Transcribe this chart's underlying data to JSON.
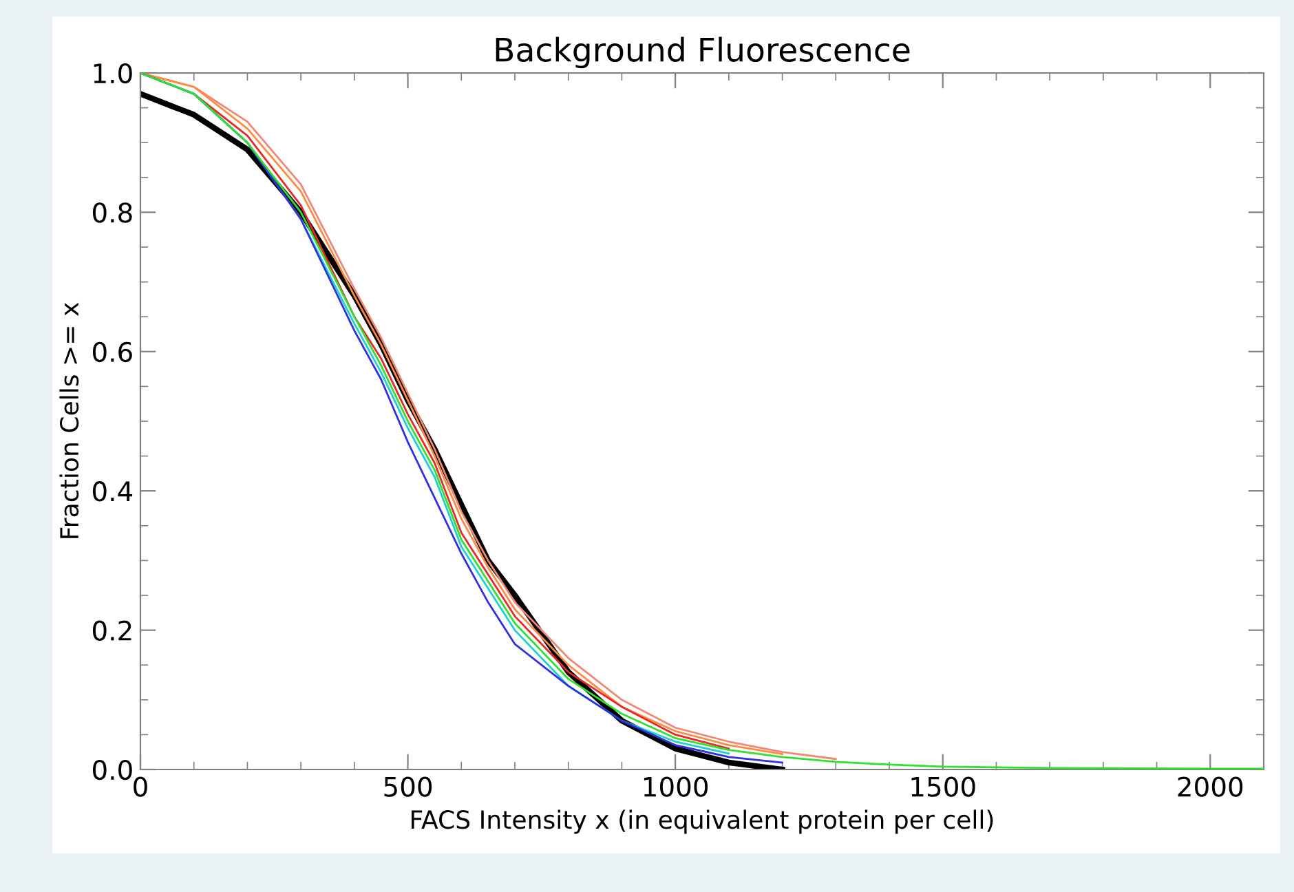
{
  "chart_data": {
    "type": "line",
    "title": "Background Fluorescence",
    "xlabel": "FACS Intensity x (in equivalent protein per cell)",
    "ylabel": "Fraction Cells >= x",
    "series": [
      {
        "color": "#000000",
        "x": [
          0,
          100,
          200,
          300,
          400,
          450,
          500,
          550,
          600,
          650,
          700,
          800,
          900,
          1000,
          1100,
          1200
        ],
        "values": [
          0.97,
          0.94,
          0.89,
          0.8,
          0.68,
          0.61,
          0.53,
          0.46,
          0.38,
          0.3,
          0.25,
          0.14,
          0.07,
          0.03,
          0.01,
          0.0
        ]
      },
      {
        "color": "#f08878",
        "x": [
          0,
          100,
          200,
          300,
          400,
          450,
          500,
          550,
          600,
          650,
          700,
          800,
          900,
          1000,
          1100,
          1200,
          1300
        ],
        "values": [
          1.0,
          0.98,
          0.93,
          0.84,
          0.69,
          0.62,
          0.54,
          0.46,
          0.37,
          0.3,
          0.24,
          0.16,
          0.1,
          0.06,
          0.04,
          0.025,
          0.015
        ]
      },
      {
        "color": "#ff8c40",
        "x": [
          0,
          100,
          200,
          300,
          400,
          450,
          500,
          550,
          600,
          650,
          700,
          800,
          900,
          1000,
          1100,
          1200
        ],
        "values": [
          1.0,
          0.98,
          0.92,
          0.83,
          0.68,
          0.61,
          0.53,
          0.45,
          0.36,
          0.29,
          0.23,
          0.15,
          0.09,
          0.055,
          0.035,
          0.022
        ]
      },
      {
        "color": "#e82828",
        "x": [
          0,
          100,
          200,
          300,
          400,
          450,
          500,
          550,
          600,
          650,
          700,
          800,
          900,
          1000,
          1100
        ],
        "values": [
          1.0,
          0.97,
          0.91,
          0.81,
          0.65,
          0.59,
          0.51,
          0.44,
          0.34,
          0.28,
          0.22,
          0.14,
          0.09,
          0.05,
          0.03
        ]
      },
      {
        "color": "#20d0d0",
        "x": [
          0,
          100,
          200,
          300,
          400,
          450,
          500,
          550,
          600,
          650,
          700,
          800,
          900,
          1000,
          1100
        ],
        "values": [
          1.0,
          0.97,
          0.9,
          0.79,
          0.64,
          0.57,
          0.49,
          0.42,
          0.32,
          0.26,
          0.2,
          0.12,
          0.07,
          0.04,
          0.023
        ]
      },
      {
        "color": "#3030e0",
        "x": [
          0,
          100,
          200,
          300,
          400,
          450,
          500,
          550,
          600,
          650,
          700,
          800,
          900,
          1000,
          1100,
          1200
        ],
        "values": [
          1.0,
          0.97,
          0.9,
          0.79,
          0.63,
          0.56,
          0.47,
          0.39,
          0.31,
          0.24,
          0.18,
          0.12,
          0.07,
          0.035,
          0.018,
          0.01
        ]
      },
      {
        "color": "#30e030",
        "x": [
          0,
          100,
          200,
          300,
          400,
          450,
          500,
          550,
          600,
          650,
          700,
          800,
          900,
          1000,
          1100,
          1200,
          1300,
          1400,
          1500,
          1700,
          2000,
          2100
        ],
        "values": [
          1.0,
          0.97,
          0.9,
          0.8,
          0.65,
          0.58,
          0.5,
          0.43,
          0.33,
          0.27,
          0.21,
          0.13,
          0.08,
          0.045,
          0.028,
          0.018,
          0.011,
          0.007,
          0.004,
          0.002,
          0.001,
          0.001
        ]
      }
    ],
    "xlim": [
      0,
      2100
    ],
    "ylim": [
      0,
      1.0
    ],
    "xticks": [
      0,
      500,
      1000,
      1500,
      2000
    ],
    "yticks": [
      {
        "value": 0,
        "label": "0.0"
      },
      {
        "value": 0.2,
        "label": "0.2"
      },
      {
        "value": 0.4,
        "label": "0.4"
      },
      {
        "value": 0.6,
        "label": "0.6"
      },
      {
        "value": 0.8,
        "label": "0.8"
      },
      {
        "value": 1.0,
        "label": "1.0"
      }
    ],
    "grid": false,
    "marker": "none",
    "line_style": "solid"
  }
}
